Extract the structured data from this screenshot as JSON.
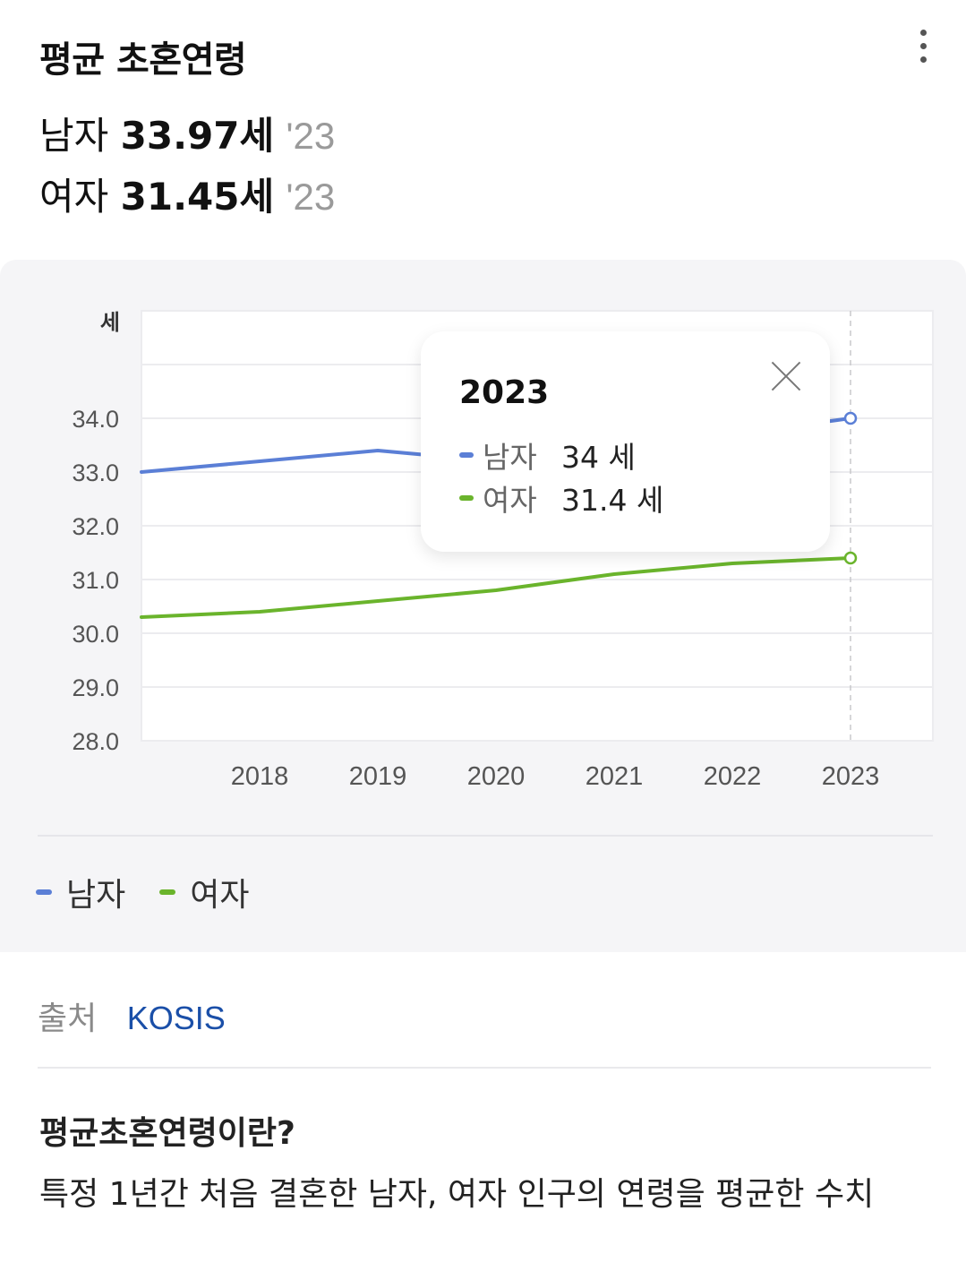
{
  "header": {
    "title": "평균 초혼연령",
    "stats": [
      {
        "label": "남자",
        "value": "33.97세",
        "year": "'23"
      },
      {
        "label": "여자",
        "value": "31.45세",
        "year": "'23"
      }
    ]
  },
  "tooltip": {
    "year": "2023",
    "rows": [
      {
        "name": "남자",
        "value": "34 세"
      },
      {
        "name": "여자",
        "value": "31.4 세"
      }
    ]
  },
  "legend": [
    {
      "name": "남자",
      "color": "#5b7fd6"
    },
    {
      "name": "여자",
      "color": "#6ab42c"
    }
  ],
  "source": {
    "label": "출처",
    "link": "KOSIS"
  },
  "definition": {
    "title": "평균초혼연령이란?",
    "text": "특정 1년간 처음 결혼한 남자, 여자 인구의 연령을 평균한 수치"
  },
  "chart_data": {
    "type": "line",
    "ylabel": "세",
    "x": [
      2017,
      2018,
      2019,
      2020,
      2021,
      2022,
      2023
    ],
    "x_tick_labels": [
      "2018",
      "2019",
      "2020",
      "2021",
      "2022",
      "2023"
    ],
    "y_ticks": [
      "34.0",
      "33.0",
      "32.0",
      "31.0",
      "30.0",
      "29.0",
      "28.0"
    ],
    "ylim": [
      28,
      36
    ],
    "grid": true,
    "highlight_x": 2023,
    "series": [
      {
        "name": "남자",
        "color": "#5b7fd6",
        "values": [
          33.0,
          33.2,
          33.4,
          33.2,
          33.4,
          33.7,
          34.0
        ]
      },
      {
        "name": "여자",
        "color": "#6ab42c",
        "values": [
          30.3,
          30.4,
          30.6,
          30.8,
          31.1,
          31.3,
          31.4
        ]
      }
    ]
  }
}
